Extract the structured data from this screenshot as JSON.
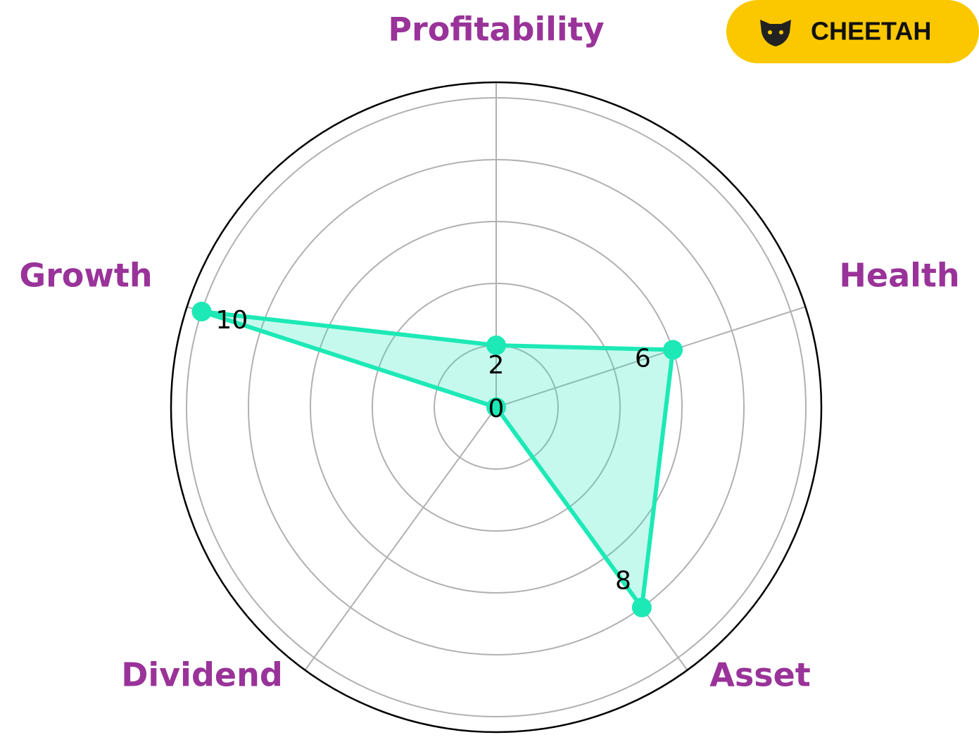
{
  "brand": "CHEETAH",
  "chart_data": {
    "type": "radar",
    "categories": [
      "Profitability",
      "Health",
      "Asset",
      "Dividend",
      "Growth"
    ],
    "values": [
      2,
      6,
      8,
      0,
      10
    ],
    "color": "#1de9b6",
    "label_color": "#993399",
    "ylim": [
      0,
      10.5
    ],
    "yticks": [
      2,
      4,
      6,
      8,
      10
    ],
    "grid": true
  }
}
